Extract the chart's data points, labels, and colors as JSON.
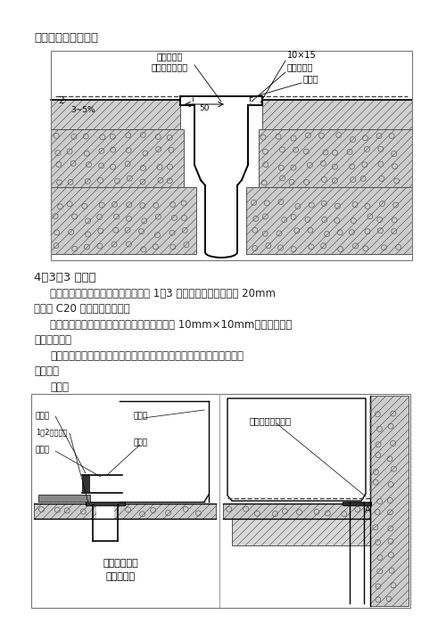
{
  "bg_color": "#f5f5f0",
  "text_color": "#222222",
  "line_color": "#333333",
  "title1": "如图：地漏防水构造",
  "sec_title": "4．3．3 坐便器",
  "para1": "大便器立管定位后，楼板四周缝隙用 1：3 水泥砂浆堪严，缝大于 20mm",
  "para1b": "时宜用 C20 细石混凝土堪严。",
  "para2": "立管接口处四周用密封材料交圈封严，尺寸为 10mm×10mm，上面防水层",
  "para2b": "做至管顶部。",
  "para3": "大便器尾部进水处与管接口用密封材料及水泥砂浆封严，外做涂膜防水",
  "para3b": "保护层。",
  "fig2_label": "如图：",
  "d1_label1a": "立管接缝用",
  "d1_label1b": "建筑密封膏堪严",
  "d1_label2": "10×15",
  "d1_label3a": "建筑密封膏",
  "d1_label3b": "防水层",
  "d1_label4": "50",
  "d1_label5": "3~5%",
  "d1_label6": "2",
  "d2_label1": "冲洗管",
  "d2_label2": "1：2水泥砂浆",
  "d2_label3": "油麥丝",
  "d2_label4": "大便器",
  "d2_label5": "密封膏",
  "d2_caption1": "大便器进水管",
  "d2_caption2": "与管口连接",
  "d2_label6": "外做涂膜防水保护",
  "font_zh": "WenQuanYi Micro Hei",
  "font_en": "DejaVu Sans"
}
